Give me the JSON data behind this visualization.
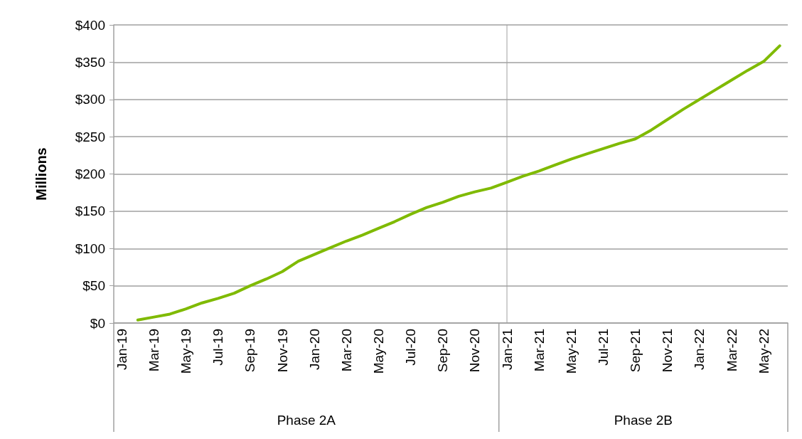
{
  "chart_data": {
    "type": "line",
    "ylabel": "Millions",
    "categories": [
      "Jan-19",
      null,
      "Mar-19",
      null,
      "May-19",
      null,
      "Jul-19",
      null,
      "Sep-19",
      null,
      "Nov-19",
      null,
      "Jan-20",
      null,
      "Mar-20",
      null,
      "May-20",
      null,
      "Jul-20",
      null,
      "Sep-20",
      null,
      "Nov-20",
      null,
      "Jan-21",
      null,
      "Mar-21",
      null,
      "May-21",
      null,
      "Jul-21",
      null,
      "Sep-21",
      null,
      "Nov-21",
      null,
      "Jan-22",
      null,
      "Mar-22",
      null,
      "May-22",
      null
    ],
    "series": [
      {
        "color": "#7fba00",
        "values": [
          null,
          4,
          8,
          12,
          19,
          27,
          33,
          40,
          50,
          59,
          69,
          83,
          92,
          101,
          110,
          118,
          127,
          136,
          146,
          155,
          162,
          170,
          176,
          181,
          189,
          197,
          204,
          212,
          220,
          227,
          234,
          241,
          247,
          259,
          273,
          287,
          300,
          313,
          326,
          339,
          351,
          372
        ]
      }
    ],
    "ylim": [
      0,
      400
    ],
    "yticks": [
      {
        "value": 0,
        "label": "$0"
      },
      {
        "value": 50,
        "label": "$50"
      },
      {
        "value": 100,
        "label": "$100"
      },
      {
        "value": 150,
        "label": "$150"
      },
      {
        "value": 200,
        "label": "$200"
      },
      {
        "value": 250,
        "label": "$250"
      },
      {
        "value": 300,
        "label": "$300"
      },
      {
        "value": 350,
        "label": "$350"
      },
      {
        "value": 400,
        "label": "$400"
      }
    ],
    "grid": "y",
    "marker": "none",
    "line_style": "solid",
    "ref_lines": [
      {
        "axis": "x",
        "value": "Jan-21",
        "color": "#a0a0a0"
      }
    ],
    "annotations": [
      "Phase 2A",
      "Phase 2B"
    ]
  }
}
